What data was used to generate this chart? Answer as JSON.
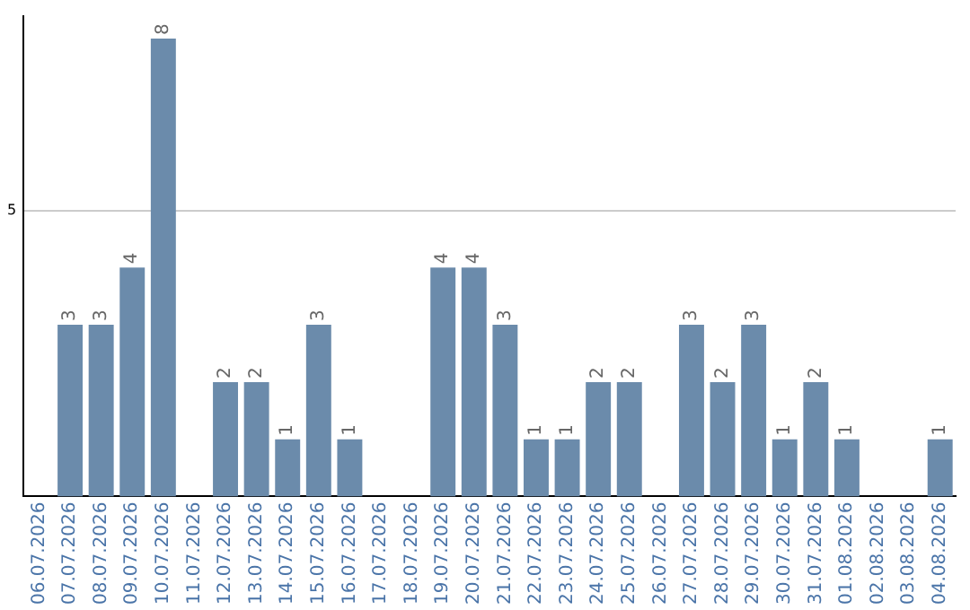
{
  "chart_data": {
    "type": "bar",
    "categories": [
      "06.07.2026",
      "07.07.2026",
      "08.07.2026",
      "09.07.2026",
      "10.07.2026",
      "11.07.2026",
      "12.07.2026",
      "13.07.2026",
      "14.07.2026",
      "15.07.2026",
      "16.07.2026",
      "17.07.2026",
      "18.07.2026",
      "19.07.2026",
      "20.07.2026",
      "21.07.2026",
      "22.07.2026",
      "23.07.2026",
      "24.07.2026",
      "25.07.2026",
      "26.07.2026",
      "27.07.2026",
      "28.07.2026",
      "29.07.2026",
      "30.07.2026",
      "31.07.2026",
      "01.08.2026",
      "02.08.2026",
      "03.08.2026",
      "04.08.2026"
    ],
    "values": [
      0,
      3,
      3,
      4,
      8,
      0,
      2,
      2,
      1,
      3,
      1,
      0,
      0,
      4,
      4,
      3,
      1,
      1,
      2,
      2,
      0,
      3,
      2,
      3,
      1,
      2,
      1,
      0,
      0,
      1
    ],
    "value_labels": [
      null,
      "3",
      "3",
      "4",
      "8",
      null,
      "2",
      "2",
      "1",
      "3",
      "1",
      null,
      null,
      "4",
      "4",
      "3",
      "1",
      "1",
      "2",
      "2",
      null,
      "3",
      "2",
      "3",
      "1",
      "2",
      "1",
      null,
      null,
      "1"
    ],
    "color": "#6b8bab",
    "ylim": [
      0,
      8.4
    ],
    "yticks": [
      5
    ],
    "grid": "y",
    "legend": false
  }
}
